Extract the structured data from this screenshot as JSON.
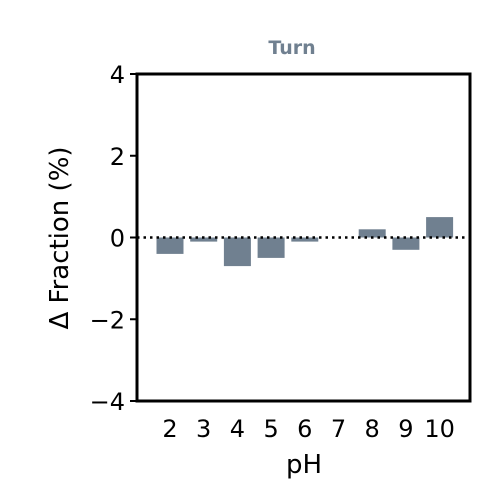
{
  "chart_data": {
    "type": "bar",
    "title": "Turn",
    "xlabel": "pH",
    "ylabel": "Δ Fraction (%)",
    "categories": [
      "2",
      "3",
      "4",
      "5",
      "6",
      "7",
      "8",
      "9",
      "10"
    ],
    "values": [
      -0.4,
      -0.1,
      -0.7,
      -0.5,
      -0.1,
      0.0,
      0.2,
      -0.3,
      0.5
    ],
    "ylim": [
      -4,
      4
    ],
    "yticks": [
      "4",
      "2",
      "0",
      "−2",
      "−4"
    ],
    "ytick_values": [
      4,
      2,
      0,
      -2,
      -4
    ],
    "reference_line": {
      "y": 0,
      "style": "dotted"
    },
    "grid": false,
    "legend": "none"
  },
  "colors": {
    "bar": "#708090",
    "title": "#708090",
    "axis": "#000000",
    "reference_line": "#000000"
  }
}
